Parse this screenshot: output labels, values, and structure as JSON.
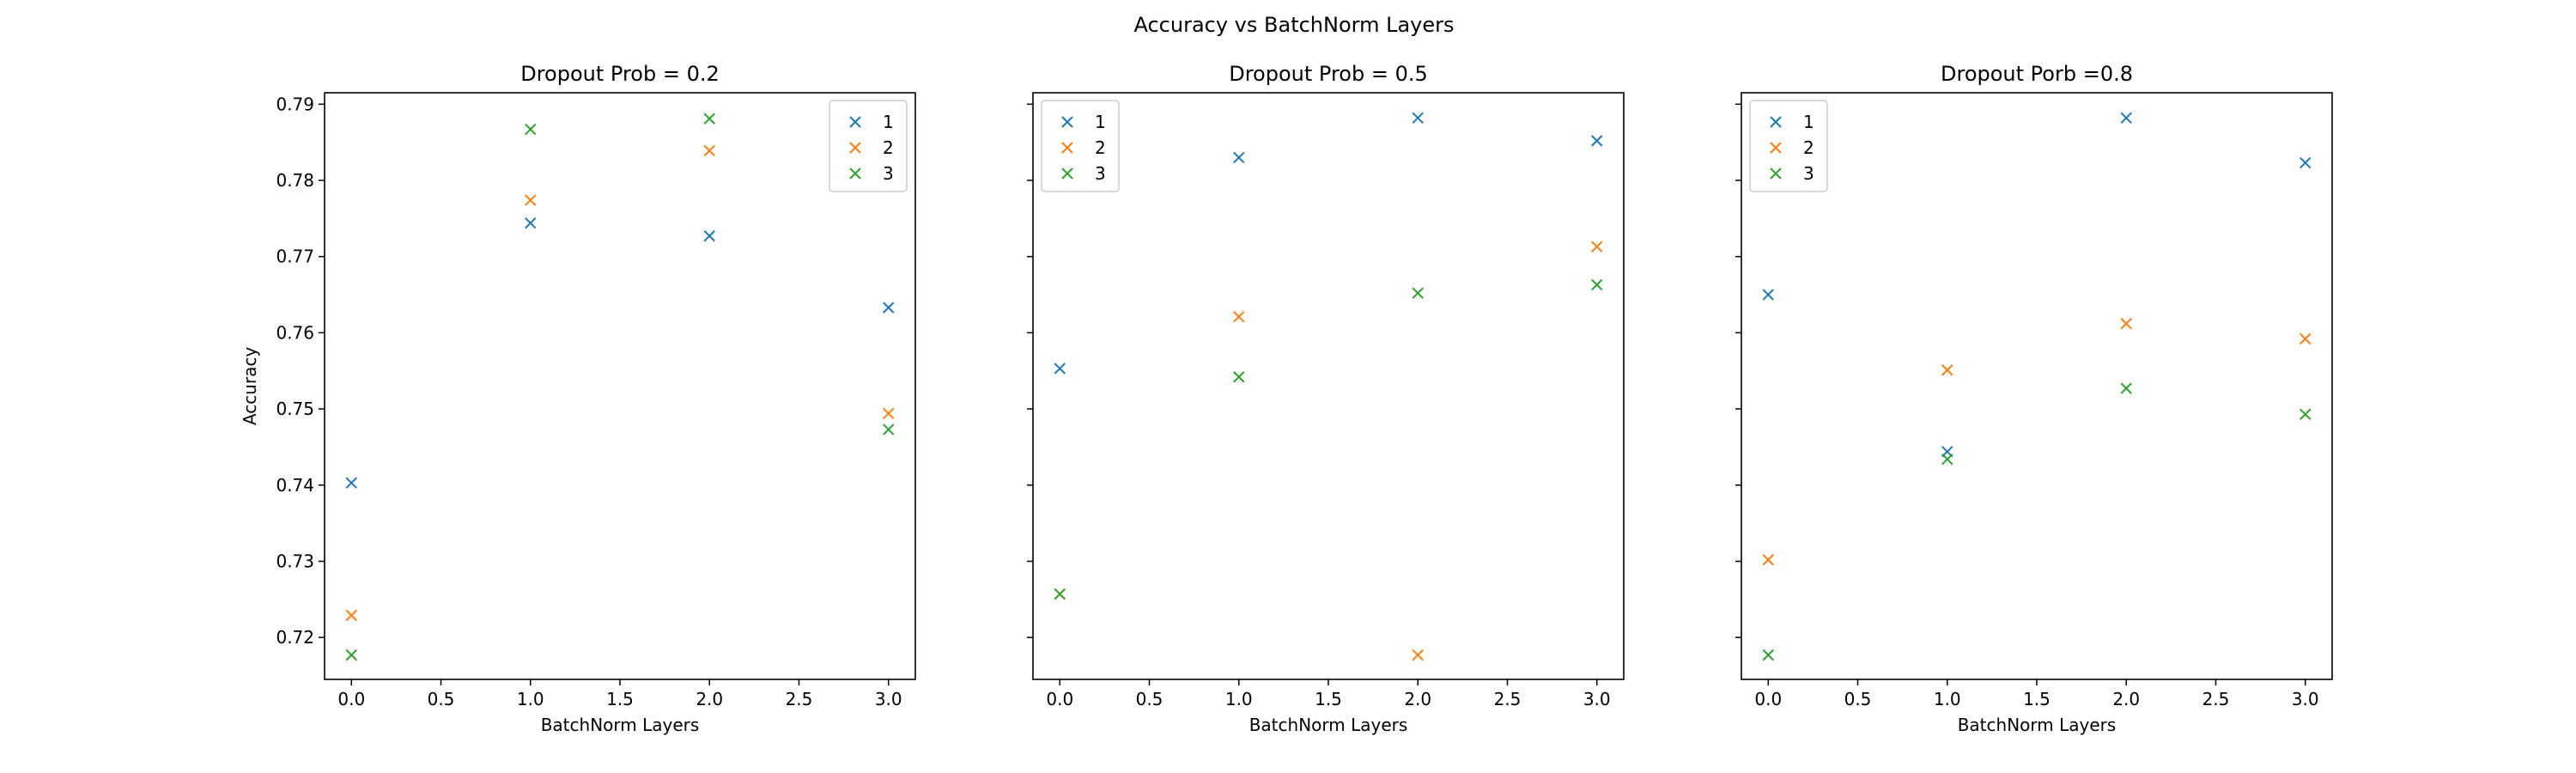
{
  "figure": {
    "title": "Accuracy vs BatchNorm Layers"
  },
  "colors": {
    "1": "#1f77b4",
    "2": "#ff7f0e",
    "3": "#2ca02c"
  },
  "chart_data": [
    {
      "type": "scatter",
      "title": "Dropout Prob = 0.2",
      "xlabel": "BatchNorm Layers",
      "ylabel": "Accuracy",
      "xlim": [
        -0.15,
        3.15
      ],
      "ylim": [
        0.7145,
        0.7915
      ],
      "xticks": [
        "0.0",
        "0.5",
        "1.0",
        "1.5",
        "2.0",
        "2.5",
        "3.0"
      ],
      "yticks": [
        "0.72",
        "0.73",
        "0.74",
        "0.75",
        "0.76",
        "0.77",
        "0.78",
        "0.79"
      ],
      "legend": "upper right",
      "series": [
        {
          "name": "1",
          "x": [
            0,
            1,
            2,
            3
          ],
          "y": [
            0.7403,
            0.7744,
            0.7727,
            0.7633
          ]
        },
        {
          "name": "2",
          "x": [
            0,
            1,
            2,
            3
          ],
          "y": [
            0.7229,
            0.7774,
            0.7839,
            0.7494
          ]
        },
        {
          "name": "3",
          "x": [
            0,
            1,
            2,
            3
          ],
          "y": [
            0.7177,
            0.7867,
            0.7881,
            0.7473
          ]
        }
      ]
    },
    {
      "type": "scatter",
      "title": "Dropout Prob = 0.5",
      "xlabel": "BatchNorm Layers",
      "ylabel": "",
      "xlim": [
        -0.15,
        3.15
      ],
      "ylim": [
        0.7145,
        0.7915
      ],
      "xticks": [
        "0.0",
        "0.5",
        "1.0",
        "1.5",
        "2.0",
        "2.5",
        "3.0"
      ],
      "yticks": [],
      "legend": "upper left",
      "series": [
        {
          "name": "1",
          "x": [
            0,
            1,
            2,
            3
          ],
          "y": [
            0.7553,
            0.783,
            0.7882,
            0.7852
          ]
        },
        {
          "name": "2",
          "x": [
            0,
            1,
            2,
            3
          ],
          "y": [
            0.7257,
            0.7621,
            0.7177,
            0.7713
          ]
        },
        {
          "name": "3",
          "x": [
            0,
            1,
            2,
            3
          ],
          "y": [
            0.7257,
            0.7542,
            0.7652,
            0.7663
          ]
        }
      ]
    },
    {
      "type": "scatter",
      "title": "Dropout Porb =0.8",
      "xlabel": "BatchNorm Layers",
      "ylabel": "",
      "xlim": [
        -0.15,
        3.15
      ],
      "ylim": [
        0.7145,
        0.7915
      ],
      "xticks": [
        "0.0",
        "0.5",
        "1.0",
        "1.5",
        "2.0",
        "2.5",
        "3.0"
      ],
      "yticks": [],
      "legend": "upper left",
      "series": [
        {
          "name": "1",
          "x": [
            0,
            1,
            2,
            3
          ],
          "y": [
            0.765,
            0.7444,
            0.7882,
            0.7823
          ]
        },
        {
          "name": "2",
          "x": [
            0,
            1,
            2,
            3
          ],
          "y": [
            0.7302,
            0.7551,
            0.7612,
            0.7592
          ]
        },
        {
          "name": "3",
          "x": [
            0,
            1,
            2,
            3
          ],
          "y": [
            0.7177,
            0.7434,
            0.7527,
            0.7493
          ]
        }
      ]
    }
  ]
}
